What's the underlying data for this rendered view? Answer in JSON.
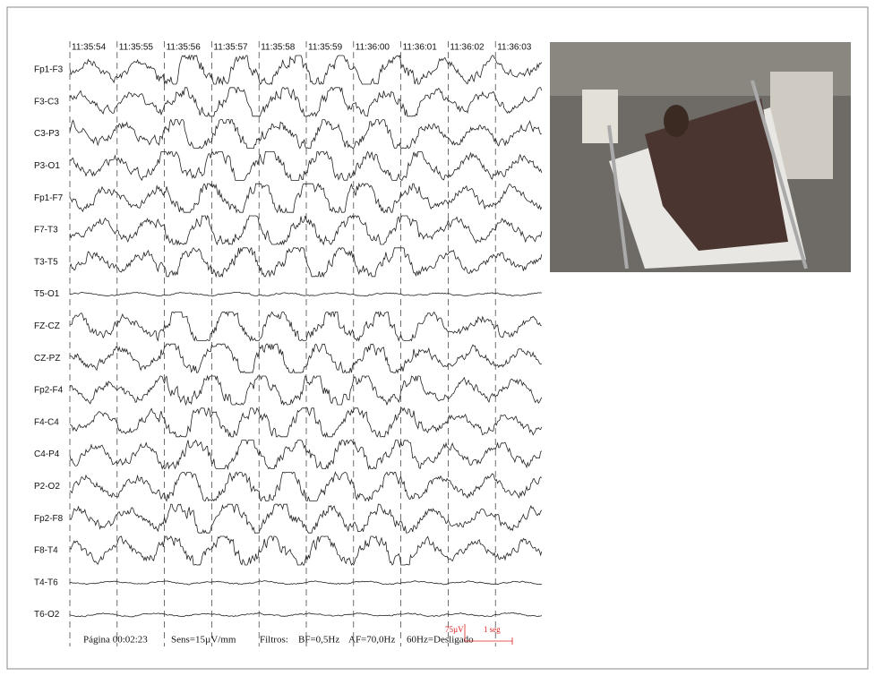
{
  "timestamps": [
    "11:35:54",
    "11:35:55",
    "11:35:56",
    "11:35:57",
    "11:35:58",
    "11:35:59",
    "11:36:00",
    "11:36:01",
    "11:36:02",
    "11:36:03"
  ],
  "channels": [
    "Fp1-F3",
    "F3-C3",
    "C3-P3",
    "P3-O1",
    "Fp1-F7",
    "F7-T3",
    "T3-T5",
    "T5-O1",
    "FZ-CZ",
    "CZ-PZ",
    "Fp2-F4",
    "F4-C4",
    "C4-P4",
    "P2-O2",
    "Fp2-F8",
    "F8-T4",
    "T4-T6",
    "T6-O2"
  ],
  "footer": {
    "page": "Página 00:02:23",
    "sens": "Sens=15µV/mm",
    "filters_label": "Filtros:",
    "bf": "BF=0,5Hz",
    "af": "AF=70,0Hz",
    "notch": "60Hz=Desligado"
  },
  "scale": {
    "amplitude": "75µV",
    "time": "1 seg"
  }
}
